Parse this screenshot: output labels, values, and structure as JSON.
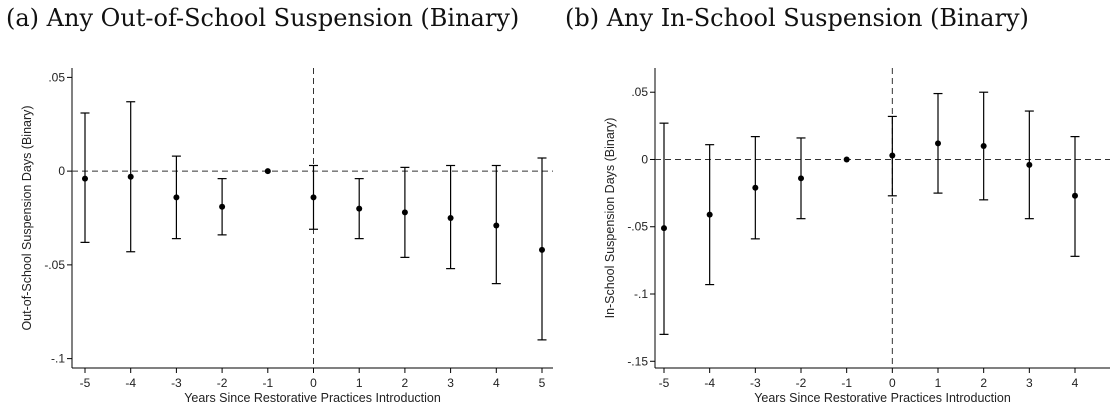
{
  "chart_data": [
    {
      "type": "scatter",
      "title": "(a) Any Out-of-School Suspension (Binary)",
      "xlabel": "Years Since Restorative Practices Introduction",
      "ylabel": "Out-of-School Suspension Days (Binary)",
      "xlim": [
        -5,
        5
      ],
      "ylim": [
        -0.105,
        0.055
      ],
      "x_ticks": [
        "-5",
        "-4",
        "-3",
        "-2",
        "-1",
        "0",
        "1",
        "2",
        "3",
        "4",
        "5"
      ],
      "y_ticks": [
        ".05",
        "0",
        "-.05",
        "-.1"
      ],
      "reference_lines": {
        "horizontal_y": 0,
        "vertical_x": 0,
        "style": "dashed"
      },
      "series": [
        {
          "x": [
            -5,
            -4,
            -3,
            -2,
            -1,
            0,
            1,
            2,
            3,
            4,
            5
          ],
          "y": [
            -0.004,
            -0.003,
            -0.014,
            -0.019,
            0.0,
            -0.014,
            -0.02,
            -0.022,
            -0.025,
            -0.029,
            -0.042
          ],
          "ci_low": [
            -0.038,
            -0.043,
            -0.036,
            -0.034,
            0.0,
            -0.031,
            -0.036,
            -0.046,
            -0.052,
            -0.06,
            -0.09
          ],
          "ci_high": [
            0.031,
            0.037,
            0.008,
            -0.004,
            0.0,
            0.003,
            -0.004,
            0.002,
            0.003,
            0.003,
            0.007
          ]
        }
      ]
    },
    {
      "type": "scatter",
      "title": "(b) Any In-School Suspension (Binary)",
      "xlabel": "Years Since Restorative Practices Introduction",
      "ylabel": "In-School Suspension Days (Binary)",
      "xlim": [
        -5,
        4
      ],
      "ylim": [
        -0.155,
        0.068
      ],
      "x_ticks": [
        "-5",
        "-4",
        "-3",
        "-2",
        "-1",
        "0",
        "1",
        "2",
        "3",
        "4"
      ],
      "y_ticks": [
        ".05",
        "0",
        "-.05",
        "-.1",
        "-.15"
      ],
      "reference_lines": {
        "horizontal_y": 0,
        "vertical_x": 0,
        "style": "dashed"
      },
      "series": [
        {
          "x": [
            -5,
            -4,
            -3,
            -2,
            -1,
            0,
            1,
            2,
            3,
            4
          ],
          "y": [
            -0.051,
            -0.041,
            -0.021,
            -0.014,
            0.0,
            0.003,
            0.012,
            0.01,
            -0.004,
            -0.027
          ],
          "ci_low": [
            -0.13,
            -0.093,
            -0.059,
            -0.044,
            0.0,
            -0.027,
            -0.025,
            -0.03,
            -0.044,
            -0.072
          ],
          "ci_high": [
            0.027,
            0.011,
            0.017,
            0.016,
            0.0,
            0.032,
            0.049,
            0.05,
            0.036,
            0.017
          ]
        }
      ]
    }
  ]
}
